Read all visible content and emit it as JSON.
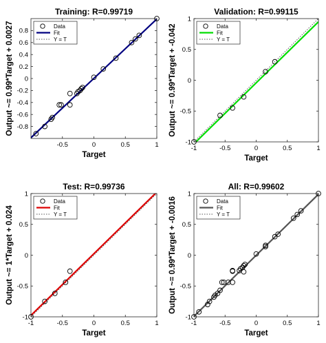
{
  "chart_data": [
    {
      "type": "scatter",
      "title": "Training: R=0.99719",
      "xlabel": "Target",
      "ylabel": "Output ~= 0.99*Target + 0.0027",
      "xlim": [
        -1,
        1
      ],
      "ylim": [
        -1,
        1
      ],
      "xticks": [
        -0.5,
        0,
        0.5,
        1
      ],
      "xtick_labels": [
        "-0.5",
        "0",
        "0.5",
        "1"
      ],
      "yticks": [
        -0.8,
        -0.6,
        -0.4,
        -0.2,
        0,
        0.2,
        0.4,
        0.6,
        0.8
      ],
      "ytick_labels": [
        "-0.8",
        "-0.6",
        "-0.4",
        "-0.2",
        "0",
        "0.2",
        "0.4",
        "0.6",
        "0.8"
      ],
      "fit": {
        "slope": 0.99,
        "intercept": 0.0027
      },
      "points": [
        [
          -0.92,
          -0.92
        ],
        [
          -0.78,
          -0.8
        ],
        [
          -0.68,
          -0.68
        ],
        [
          -0.66,
          -0.65
        ],
        [
          -0.55,
          -0.44
        ],
        [
          -0.52,
          -0.44
        ],
        [
          -0.38,
          -0.25
        ],
        [
          -0.38,
          -0.44
        ],
        [
          -0.27,
          -0.25
        ],
        [
          -0.25,
          -0.22
        ],
        [
          -0.22,
          -0.2
        ],
        [
          -0.2,
          -0.17
        ],
        [
          -0.18,
          -0.15
        ],
        [
          0,
          0.02
        ],
        [
          0.15,
          0.16
        ],
        [
          0.35,
          0.34
        ],
        [
          0.6,
          0.6
        ],
        [
          0.66,
          0.66
        ],
        [
          0.72,
          0.72
        ],
        [
          1.0,
          1.0
        ]
      ],
      "fit_color": "#000080",
      "legend": [
        "Data",
        "Fit",
        "Y = T"
      ],
      "legend_placement": "top-left"
    },
    {
      "type": "scatter",
      "title": "Validation: R=0.99115",
      "xlabel": "Target",
      "ylabel": "Output ~= 0.99*Target + -0.042",
      "xlim": [
        -1,
        1
      ],
      "ylim": [
        -1,
        1
      ],
      "xticks": [
        -1,
        -0.5,
        0,
        0.5,
        1
      ],
      "xtick_labels": [
        "-1",
        "-0.5",
        "0",
        "0.5",
        "1"
      ],
      "yticks": [
        -1,
        -0.5,
        0,
        0.5,
        1
      ],
      "ytick_labels": [
        "-1",
        "-0.5",
        "0",
        "0.5",
        "1"
      ],
      "fit": {
        "slope": 0.99,
        "intercept": -0.042
      },
      "points": [
        [
          -1.0,
          -1.0
        ],
        [
          -0.58,
          -0.57
        ],
        [
          -0.38,
          -0.45
        ],
        [
          -0.2,
          -0.27
        ],
        [
          0.15,
          0.14
        ],
        [
          0.3,
          0.3
        ]
      ],
      "fit_color": "#00dd00",
      "legend": [
        "Data",
        "Fit",
        "Y = T"
      ],
      "legend_placement": "top-left"
    },
    {
      "type": "scatter",
      "title": "Test: R=0.99736",
      "xlabel": "Target",
      "ylabel": "Output ~= 1*Target + 0.024",
      "xlim": [
        -1,
        1
      ],
      "ylim": [
        -1,
        1
      ],
      "xticks": [
        -1,
        -0.5,
        0,
        0.5,
        1
      ],
      "xtick_labels": [
        "-1",
        "-0.5",
        "0",
        "0.5",
        "1"
      ],
      "yticks": [
        -1,
        -0.5,
        0,
        0.5,
        1
      ],
      "ytick_labels": [
        "-1",
        "-0.5",
        "0",
        "0.5",
        "1"
      ],
      "fit": {
        "slope": 1.0,
        "intercept": 0.024
      },
      "points": [
        [
          -1.0,
          -1.0
        ],
        [
          -0.78,
          -0.75
        ],
        [
          -0.62,
          -0.62
        ],
        [
          -0.45,
          -0.44
        ],
        [
          -0.38,
          -0.26
        ]
      ],
      "fit_color": "#dd0000",
      "legend": [
        "Data",
        "Fit",
        "Y = T"
      ],
      "legend_placement": "top-left"
    },
    {
      "type": "scatter",
      "title": "All: R=0.99602",
      "xlabel": "Target",
      "ylabel": "Output ~= 0.99*Target + -0.0016",
      "xlim": [
        -1,
        1
      ],
      "ylim": [
        -1,
        1
      ],
      "xticks": [
        -1,
        -0.5,
        0,
        0.5,
        1
      ],
      "xtick_labels": [
        "-1",
        "-0.5",
        "0",
        "0.5",
        "1"
      ],
      "yticks": [
        -1,
        -0.5,
        0,
        0.5,
        1
      ],
      "ytick_labels": [
        "-1",
        "-0.5",
        "0",
        "0.5",
        "1"
      ],
      "fit": {
        "slope": 0.99,
        "intercept": -0.0016
      },
      "points": [
        [
          -1.0,
          -1.0
        ],
        [
          -0.92,
          -0.92
        ],
        [
          -0.78,
          -0.8
        ],
        [
          -0.75,
          -0.75
        ],
        [
          -0.68,
          -0.68
        ],
        [
          -0.66,
          -0.65
        ],
        [
          -0.62,
          -0.62
        ],
        [
          -0.58,
          -0.57
        ],
        [
          -0.55,
          -0.44
        ],
        [
          -0.52,
          -0.44
        ],
        [
          -0.45,
          -0.44
        ],
        [
          -0.38,
          -0.44
        ],
        [
          -0.38,
          -0.26
        ],
        [
          -0.38,
          -0.25
        ],
        [
          -0.27,
          -0.25
        ],
        [
          -0.25,
          -0.22
        ],
        [
          -0.22,
          -0.2
        ],
        [
          -0.2,
          -0.17
        ],
        [
          -0.2,
          -0.27
        ],
        [
          -0.18,
          -0.15
        ],
        [
          0,
          0.02
        ],
        [
          0.15,
          0.14
        ],
        [
          0.15,
          0.16
        ],
        [
          0.3,
          0.3
        ],
        [
          0.35,
          0.34
        ],
        [
          0.6,
          0.6
        ],
        [
          0.66,
          0.66
        ],
        [
          0.72,
          0.72
        ],
        [
          1.0,
          1.0
        ]
      ],
      "fit_color": "#555555",
      "legend": [
        "Data",
        "Fit",
        "Y = T"
      ],
      "legend_placement": "top-left"
    }
  ]
}
